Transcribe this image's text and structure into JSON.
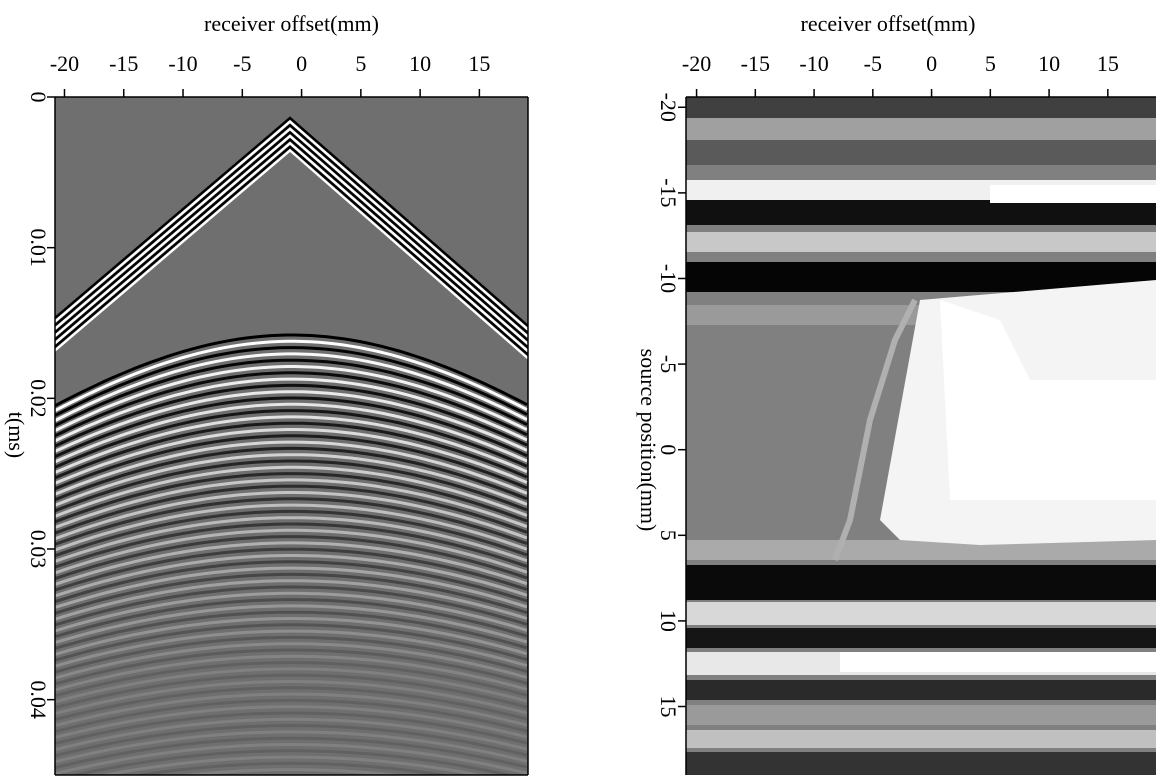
{
  "chart_data": [
    {
      "type": "image",
      "xlabel": "receiver offset(mm)",
      "ylabel": "t(ms)",
      "xlim": [
        -20.8,
        19.1
      ],
      "xticks": [
        -20,
        -15,
        -10,
        -5,
        0,
        5,
        10,
        15
      ],
      "ylim": [
        0,
        0.045
      ],
      "yticks": [
        0,
        0.01,
        0.02,
        0.03,
        0.04
      ]
    },
    {
      "type": "image",
      "xlabel": "receiver offset(mm)",
      "ylabel": "source position(mm)",
      "xlim": [
        -20.9,
        19.1
      ],
      "xticks": [
        -20,
        -15,
        -10,
        -5,
        0,
        5,
        10,
        15
      ],
      "ylim": [
        -20.6,
        19
      ],
      "yticks": [
        -20,
        -15,
        -10,
        -5,
        0,
        5,
        10,
        15
      ]
    }
  ]
}
